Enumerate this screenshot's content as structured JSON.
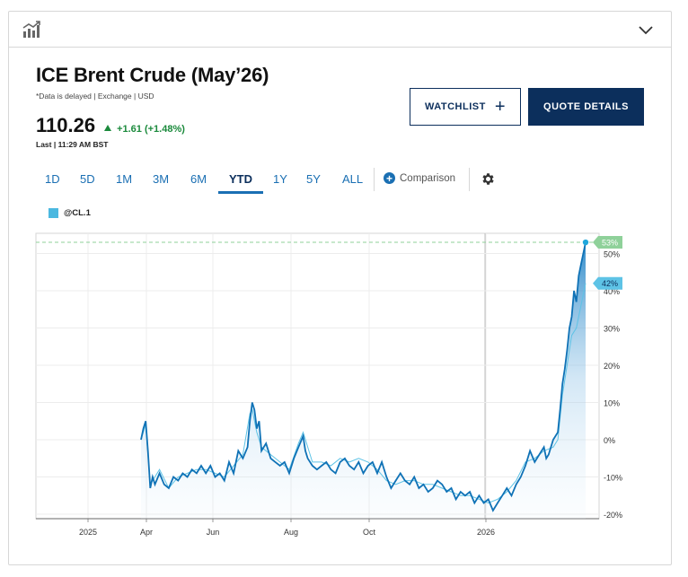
{
  "header": {
    "chart_icon": "bar-chart-icon",
    "toggle_icon": "chevron-down-icon"
  },
  "quote": {
    "title": "ICE Brent Crude (May’26)",
    "meta": "*Data is delayed | Exchange | USD",
    "price": "110.26",
    "change": "+1.61 (+1.48%)",
    "last": "Last | 11:29 AM BST"
  },
  "buttons": {
    "watchlist": "WATCHLIST",
    "quote_details": "QUOTE DETAILS"
  },
  "tabs": [
    "1D",
    "5D",
    "1M",
    "3M",
    "6M",
    "YTD",
    "1Y",
    "5Y",
    "ALL"
  ],
  "active_tab": "YTD",
  "comparison_label": "Comparison",
  "colors": {
    "accent": "#1a6fb3",
    "navy": "#0c2f5c",
    "positive": "#1b8a3c",
    "series": "#4bb8e0",
    "compare": "#7cc98a"
  },
  "chart_data": {
    "type": "line",
    "legend": [
      "@CL.1"
    ],
    "x_ticks": [
      "2025",
      "Apr",
      "Jun",
      "Aug",
      "Oct",
      "2026"
    ],
    "y_ticks": [
      "50%",
      "40%",
      "30%",
      "20%",
      "10%",
      "0%",
      "-10%",
      "-20%"
    ],
    "y_unit": "%",
    "ylim": [
      -20,
      55
    ],
    "end_labels": [
      {
        "text": "53%",
        "value": 53
      },
      {
        "text": "42%",
        "value": 42
      }
    ],
    "series": [
      {
        "name": "@CL.1",
        "points": [
          [
            0,
            0
          ],
          [
            1,
            3
          ],
          [
            2,
            5
          ],
          [
            3,
            -3
          ],
          [
            4,
            -13
          ],
          [
            5,
            -10
          ],
          [
            6,
            -12
          ],
          [
            8,
            -9
          ],
          [
            10,
            -12
          ],
          [
            12,
            -13
          ],
          [
            14,
            -10
          ],
          [
            16,
            -11
          ],
          [
            18,
            -9
          ],
          [
            20,
            -10
          ],
          [
            22,
            -8
          ],
          [
            24,
            -9
          ],
          [
            26,
            -7
          ],
          [
            28,
            -9
          ],
          [
            30,
            -7
          ],
          [
            32,
            -10
          ],
          [
            34,
            -9
          ],
          [
            36,
            -11
          ],
          [
            38,
            -6
          ],
          [
            40,
            -9
          ],
          [
            42,
            -3
          ],
          [
            44,
            -5
          ],
          [
            46,
            -2
          ],
          [
            47,
            5
          ],
          [
            48,
            10
          ],
          [
            49,
            8
          ],
          [
            50,
            3
          ],
          [
            51,
            5
          ],
          [
            52,
            -3
          ],
          [
            54,
            -1
          ],
          [
            56,
            -5
          ],
          [
            58,
            -6
          ],
          [
            60,
            -7
          ],
          [
            62,
            -6
          ],
          [
            64,
            -9
          ],
          [
            66,
            -5
          ],
          [
            68,
            -2
          ],
          [
            70,
            1
          ],
          [
            71,
            -3
          ],
          [
            72,
            -5
          ],
          [
            74,
            -7
          ],
          [
            76,
            -8
          ],
          [
            78,
            -7
          ],
          [
            80,
            -6
          ],
          [
            82,
            -8
          ],
          [
            84,
            -9
          ],
          [
            86,
            -6
          ],
          [
            88,
            -5
          ],
          [
            90,
            -7
          ],
          [
            92,
            -8
          ],
          [
            94,
            -6
          ],
          [
            96,
            -9
          ],
          [
            98,
            -7
          ],
          [
            100,
            -6
          ],
          [
            102,
            -9
          ],
          [
            104,
            -6
          ],
          [
            106,
            -10
          ],
          [
            108,
            -13
          ],
          [
            110,
            -11
          ],
          [
            112,
            -9
          ],
          [
            114,
            -11
          ],
          [
            116,
            -12
          ],
          [
            118,
            -10
          ],
          [
            120,
            -13
          ],
          [
            122,
            -12
          ],
          [
            124,
            -14
          ],
          [
            126,
            -13
          ],
          [
            128,
            -11
          ],
          [
            130,
            -12
          ],
          [
            132,
            -14
          ],
          [
            134,
            -13
          ],
          [
            136,
            -16
          ],
          [
            138,
            -14
          ],
          [
            140,
            -15
          ],
          [
            142,
            -14
          ],
          [
            144,
            -17
          ],
          [
            146,
            -15
          ],
          [
            148,
            -17
          ],
          [
            150,
            -16
          ],
          [
            152,
            -19
          ],
          [
            154,
            -17
          ],
          [
            156,
            -15
          ],
          [
            158,
            -13
          ],
          [
            160,
            -15
          ],
          [
            162,
            -12
          ],
          [
            164,
            -10
          ],
          [
            166,
            -7
          ],
          [
            168,
            -3
          ],
          [
            170,
            -6
          ],
          [
            172,
            -4
          ],
          [
            174,
            -2
          ],
          [
            175,
            -5
          ],
          [
            176,
            -4
          ],
          [
            178,
            0
          ],
          [
            180,
            2
          ],
          [
            181,
            8
          ],
          [
            182,
            15
          ],
          [
            183,
            19
          ],
          [
            184,
            24
          ],
          [
            185,
            30
          ],
          [
            186,
            33
          ],
          [
            187,
            40
          ],
          [
            188,
            37
          ],
          [
            189,
            44
          ],
          [
            190,
            47
          ],
          [
            191,
            50
          ],
          [
            192,
            53
          ]
        ]
      },
      {
        "name": "",
        "points": [
          [
            0,
            0
          ],
          [
            2,
            4
          ],
          [
            4,
            -12
          ],
          [
            8,
            -8
          ],
          [
            12,
            -13
          ],
          [
            16,
            -10
          ],
          [
            20,
            -9
          ],
          [
            24,
            -8
          ],
          [
            28,
            -8
          ],
          [
            32,
            -9
          ],
          [
            36,
            -10
          ],
          [
            40,
            -7
          ],
          [
            44,
            -4
          ],
          [
            47,
            7
          ],
          [
            48,
            8
          ],
          [
            50,
            2
          ],
          [
            52,
            -2
          ],
          [
            56,
            -4
          ],
          [
            60,
            -6
          ],
          [
            64,
            -8
          ],
          [
            68,
            -1
          ],
          [
            70,
            2
          ],
          [
            74,
            -6
          ],
          [
            78,
            -6
          ],
          [
            82,
            -7
          ],
          [
            86,
            -5
          ],
          [
            90,
            -6
          ],
          [
            94,
            -5
          ],
          [
            98,
            -6
          ],
          [
            102,
            -8
          ],
          [
            106,
            -11
          ],
          [
            110,
            -12
          ],
          [
            114,
            -11
          ],
          [
            118,
            -11
          ],
          [
            122,
            -12
          ],
          [
            126,
            -12
          ],
          [
            130,
            -13
          ],
          [
            134,
            -14
          ],
          [
            138,
            -15
          ],
          [
            142,
            -15
          ],
          [
            146,
            -16
          ],
          [
            150,
            -17
          ],
          [
            154,
            -16
          ],
          [
            158,
            -14
          ],
          [
            162,
            -11
          ],
          [
            166,
            -6
          ],
          [
            170,
            -5
          ],
          [
            174,
            -3
          ],
          [
            178,
            -2
          ],
          [
            180,
            0
          ],
          [
            182,
            12
          ],
          [
            184,
            20
          ],
          [
            186,
            28
          ],
          [
            188,
            30
          ],
          [
            190,
            36
          ],
          [
            192,
            42
          ]
        ]
      }
    ]
  }
}
